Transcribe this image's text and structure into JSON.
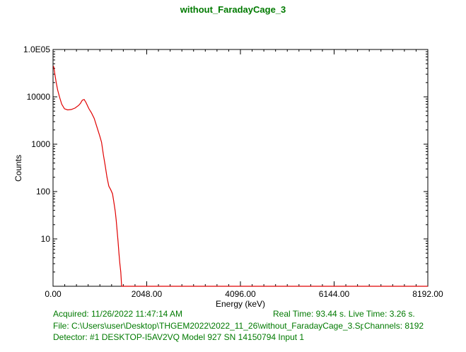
{
  "chart_data": {
    "type": "line",
    "title": "without_FaradayCage_3",
    "xlabel": "Energy (keV)",
    "ylabel": "Counts",
    "y_scale": "log",
    "xlim": [
      0,
      8192
    ],
    "ylim": [
      1,
      100000
    ],
    "x_ticks": [
      {
        "value": 0,
        "label": "0.00"
      },
      {
        "value": 2048,
        "label": "2048.00"
      },
      {
        "value": 4096,
        "label": "4096.00"
      },
      {
        "value": 6144,
        "label": "6144.00"
      },
      {
        "value": 8192,
        "label": "8192.00"
      }
    ],
    "y_ticks": [
      {
        "value": 10,
        "label": "10"
      },
      {
        "value": 100,
        "label": "100"
      },
      {
        "value": 1000,
        "label": "1000"
      },
      {
        "value": 10000,
        "label": "10000"
      },
      {
        "value": 100000,
        "label": "1.0E05"
      }
    ],
    "series_color": "#e00000",
    "series": [
      {
        "x": [
          10,
          25,
          45,
          70,
          100,
          140,
          190,
          250,
          320,
          400,
          480,
          560,
          600,
          640,
          680,
          720,
          780,
          840,
          900,
          960,
          1020,
          1060,
          1100,
          1140,
          1180,
          1220,
          1260,
          1300,
          1330,
          1360,
          1380,
          1400,
          1420,
          1440,
          1460,
          1480,
          1500,
          1540,
          1600,
          2000,
          4000,
          6000,
          8192
        ],
        "y": [
          45000,
          38000,
          28000,
          20000,
          14000,
          10000,
          7000,
          5600,
          5300,
          5400,
          5800,
          6600,
          7300,
          8500,
          8800,
          7600,
          5700,
          4600,
          3500,
          2300,
          1500,
          1100,
          600,
          350,
          200,
          130,
          110,
          90,
          60,
          38,
          25,
          15,
          9,
          5,
          3,
          2,
          1,
          1,
          1,
          1,
          1,
          1,
          1
        ]
      }
    ]
  },
  "info": {
    "acquired": "Acquired:  11/26/2022 11:47:14 AM",
    "real_live_time": "Real Time: 93.44 s.  Live Time: 3.26 s.",
    "file": "File:  C:\\Users\\user\\Desktop\\THGEM2022\\2022_11_26\\without_FaradayCage_3.Spe",
    "channels": "Channels:  8192",
    "detector": "Detector:  #1 DESKTOP-I5AV2VQ Model 927 SN 14150794 Input 1"
  }
}
